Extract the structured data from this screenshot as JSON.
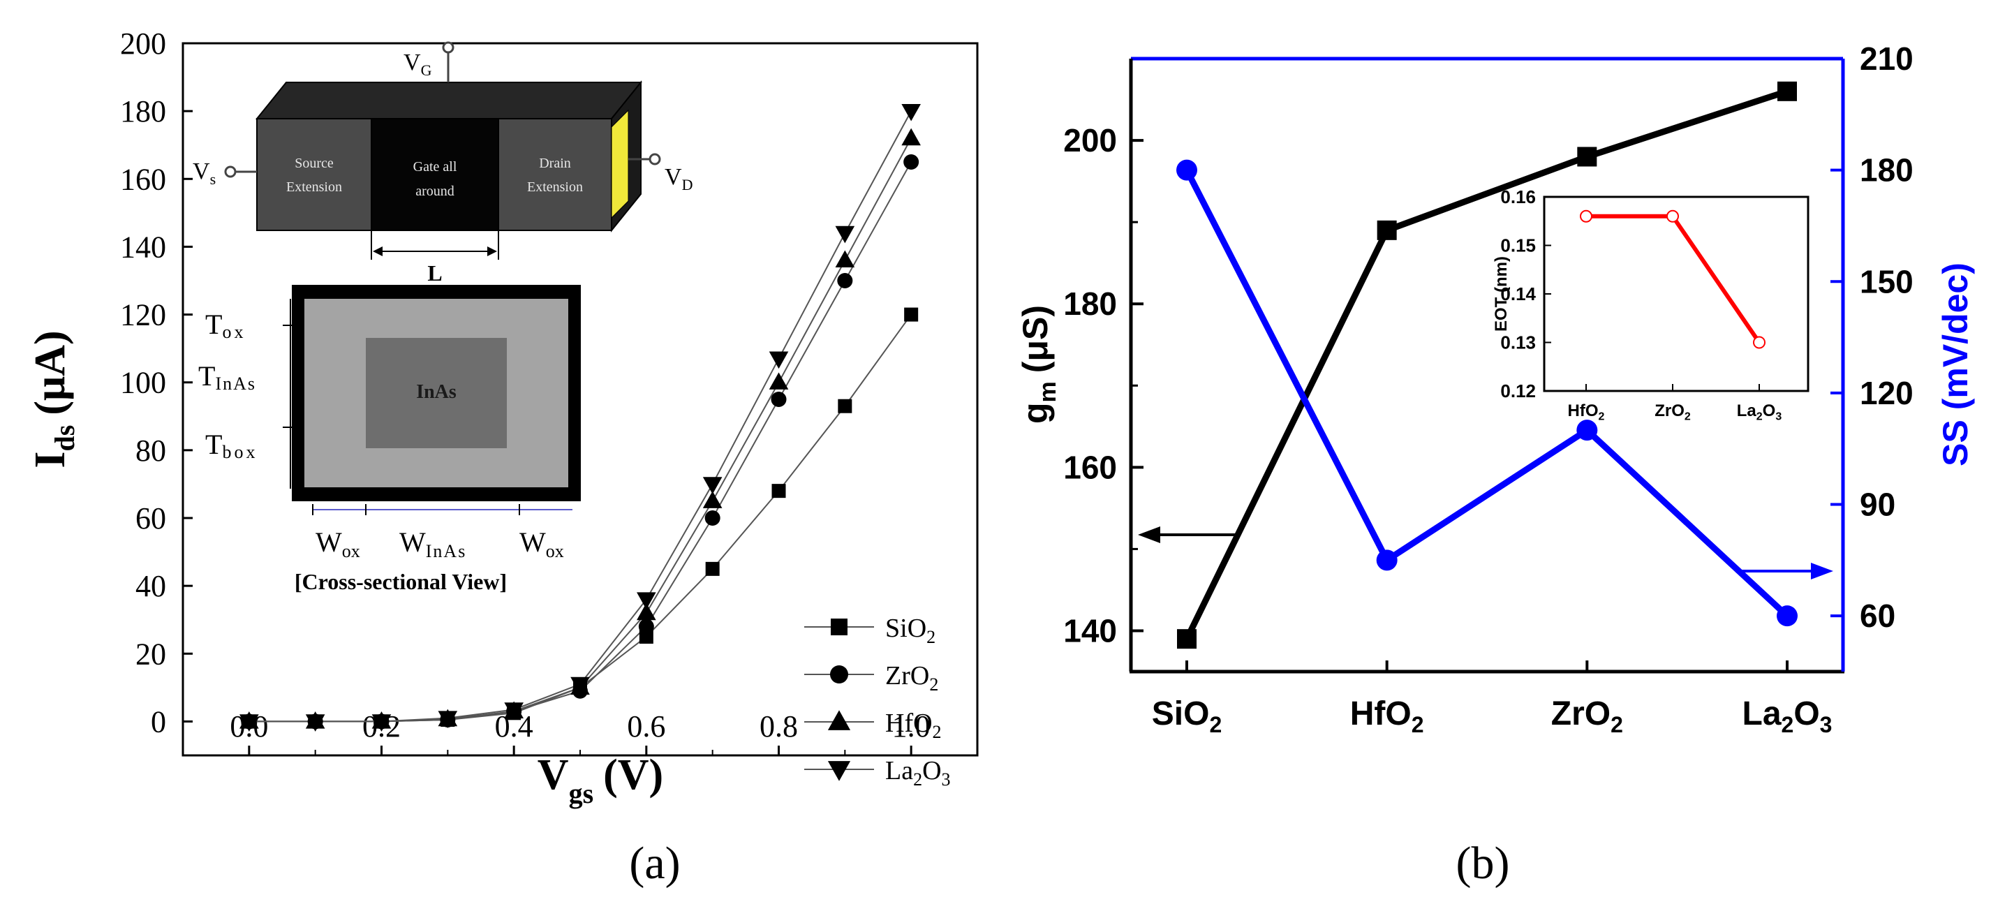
{
  "panel_labels": {
    "a": "(a)",
    "b": "(b)"
  },
  "colors": {
    "black": "#000000",
    "blue": "#0000ff",
    "red": "#ff0000"
  },
  "chart_data": [
    {
      "id": "a",
      "type": "line",
      "xlabel_main": "V",
      "xlabel_sub": "gs",
      "xlabel_unit": "(V)",
      "ylabel_main": "I",
      "ylabel_sub": "ds",
      "ylabel_unit": "(μA)",
      "xlim": [
        -0.1,
        1.1
      ],
      "ylim": [
        -10,
        200
      ],
      "x_ticks": [
        0.0,
        0.2,
        0.4,
        0.6,
        0.8,
        1.0
      ],
      "x_tick_labels": [
        "0.0",
        "0.2",
        "0.4",
        "0.6",
        "0.8",
        "1.0"
      ],
      "y_ticks": [
        0,
        20,
        40,
        60,
        80,
        100,
        120,
        140,
        160,
        180,
        200
      ],
      "y_tick_labels": [
        "0",
        "20",
        "40",
        "60",
        "80",
        "100",
        "120",
        "140",
        "160",
        "180",
        "200"
      ],
      "x": [
        0.0,
        0.1,
        0.2,
        0.3,
        0.4,
        0.5,
        0.6,
        0.7,
        0.8,
        0.9,
        1.0
      ],
      "series": [
        {
          "name": "SiO2",
          "label_main": "SiO",
          "label_sub": "2",
          "label_end": "",
          "marker": "square",
          "values": [
            0,
            0,
            0,
            0.5,
            2.5,
            10,
            25,
            45,
            68,
            93,
            120
          ]
        },
        {
          "name": "ZrO2",
          "label_main": "ZrO",
          "label_sub": "2",
          "label_end": "",
          "marker": "circle",
          "values": [
            0,
            0,
            0,
            0.5,
            3,
            9,
            28,
            60,
            95,
            130,
            165
          ]
        },
        {
          "name": "HfO2",
          "label_main": "HfO",
          "label_sub": "2",
          "label_end": "",
          "marker": "triangle-up",
          "values": [
            0,
            0,
            0,
            0.7,
            3,
            10,
            32,
            65,
            100,
            136,
            172
          ]
        },
        {
          "name": "La2O3",
          "label_main": "La",
          "label_sub": "2",
          "label_end": "O",
          "label_sub2": "3",
          "marker": "triangle-down",
          "values": [
            0,
            0,
            0,
            1,
            3.5,
            11,
            36,
            70,
            107,
            144,
            180
          ]
        }
      ],
      "inset_device": {
        "gate_label_main": "V",
        "gate_label_sub": "G",
        "source_label_main": "V",
        "source_label_sub": "s",
        "drain_label_main": "V",
        "drain_label_sub": "D",
        "source_text": [
          "Source",
          "Extension"
        ],
        "gate_text": [
          "Gate all",
          "around"
        ],
        "drain_text": [
          "Drain",
          "Extension"
        ],
        "length_label": "L"
      },
      "inset_cross_section": {
        "core_label": "InAs",
        "t_ox_main": "T",
        "t_ox_sub": "ox",
        "t_inas_main": "T",
        "t_inas_sub": "InAs",
        "t_box_main": "T",
        "t_box_sub": "box",
        "w_ox_main": "W",
        "w_ox_sub": "ox",
        "w_inas_main": "W",
        "w_inas_sub": "InAs",
        "caption": "[Cross-sectional View]"
      }
    },
    {
      "id": "b",
      "type": "line",
      "categories": [
        {
          "main": "SiO",
          "sub": "2",
          "end": "",
          "sub2": ""
        },
        {
          "main": "HfO",
          "sub": "2",
          "end": "",
          "sub2": ""
        },
        {
          "main": "ZrO",
          "sub": "2",
          "end": "",
          "sub2": ""
        },
        {
          "main": "La",
          "sub": "2",
          "end": "O",
          "sub2": "3"
        }
      ],
      "ylabel_left_main": "g",
      "ylabel_left_sub": "m",
      "ylabel_left_unit": "(μS)",
      "ylabel_right": "SS (mV/dec)",
      "ylim_left": [
        135,
        210
      ],
      "ylim_right": [
        45,
        210
      ],
      "y_left_ticks": [
        140,
        160,
        180,
        200
      ],
      "y_left_tick_labels": [
        "140",
        "160",
        "180",
        "200"
      ],
      "y_right_ticks": [
        60,
        90,
        120,
        150,
        180,
        210
      ],
      "y_right_tick_labels": [
        "60",
        "90",
        "120",
        "150",
        "180",
        "210"
      ],
      "series": [
        {
          "name": "gm",
          "axis": "left",
          "marker": "square",
          "color": "#000000",
          "values": [
            139,
            189,
            198,
            206
          ]
        },
        {
          "name": "SS",
          "axis": "right",
          "marker": "circle",
          "color": "#0000ff",
          "values": [
            180,
            75,
            110,
            60
          ]
        }
      ],
      "inset": {
        "ylabel": "EOT (nm)",
        "ylim": [
          0.12,
          0.16
        ],
        "y_ticks": [
          0.12,
          0.13,
          0.14,
          0.15,
          0.16
        ],
        "y_tick_labels": [
          "0.12",
          "0.13",
          "0.14",
          "0.15",
          "0.16"
        ],
        "categories": [
          {
            "main": "HfO",
            "sub": "2",
            "end": "",
            "sub2": ""
          },
          {
            "main": "ZrO",
            "sub": "2",
            "end": "",
            "sub2": ""
          },
          {
            "main": "La",
            "sub": "2",
            "end": "O",
            "sub2": "3"
          }
        ],
        "values": [
          0.156,
          0.156,
          0.13
        ],
        "color": "#ff0000"
      }
    }
  ]
}
